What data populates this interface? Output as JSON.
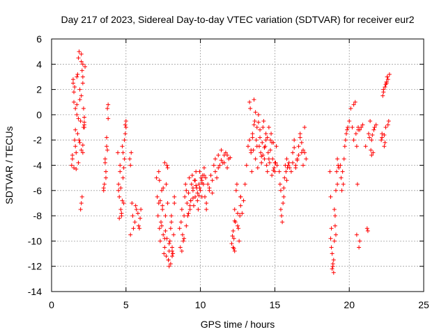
{
  "chart_data": {
    "type": "scatter",
    "title": "Day 217 of 2023, Sidereal Day-to-day VTEC variation (SDTVAR) for receiver eur2",
    "xlabel": "GPS time / hours",
    "ylabel": "SDTVAR / TECUs",
    "xlim": [
      0,
      25
    ],
    "ylim": [
      -14,
      6
    ],
    "xticks": [
      0,
      5,
      10,
      15,
      20,
      25
    ],
    "yticks": [
      -14,
      -12,
      -10,
      -8,
      -6,
      -4,
      -2,
      0,
      2,
      4,
      6
    ],
    "grid": true,
    "marker": "plus",
    "color": "#ff0000",
    "series": [
      {
        "name": "SDTVAR eur2",
        "x": [
          1.35,
          1.4,
          1.45,
          1.5,
          1.55,
          1.6,
          1.65,
          1.7,
          1.75,
          1.8,
          1.85,
          1.9,
          1.95,
          2.0,
          2.05,
          2.1,
          2.15,
          2.2,
          2.25,
          1.5,
          1.6,
          1.7,
          1.8,
          1.9,
          2.0,
          2.1,
          1.4,
          1.5,
          1.6,
          1.7,
          1.8,
          1.9,
          2.0,
          2.1,
          2.2,
          1.95,
          2.0,
          2.05,
          2.1,
          2.15,
          2.2,
          1.45,
          1.55,
          1.65,
          1.75,
          1.85,
          2.0,
          2.1,
          2.2,
          3.5,
          3.55,
          3.6,
          3.65,
          3.7,
          3.75,
          3.8,
          3.5,
          3.6,
          3.7,
          3.8,
          3.65,
          3.75,
          4.45,
          4.5,
          4.55,
          4.6,
          4.65,
          4.7,
          4.75,
          4.8,
          4.85,
          4.9,
          4.95,
          5.0,
          4.5,
          4.6,
          4.7,
          4.8,
          4.9,
          5.0,
          4.55,
          4.65,
          4.75,
          4.85,
          4.95,
          5.25,
          5.3,
          5.35,
          5.4,
          5.5,
          5.6,
          5.7,
          5.3,
          5.45,
          5.65,
          5.8,
          5.85,
          5.9,
          5.95,
          6.0,
          7.05,
          7.1,
          7.15,
          7.2,
          7.25,
          7.3,
          7.35,
          7.4,
          7.45,
          7.5,
          7.55,
          7.6,
          7.65,
          7.7,
          7.75,
          7.8,
          7.85,
          7.9,
          7.95,
          8.0,
          8.05,
          8.1,
          8.15,
          8.2,
          8.25,
          7.2,
          7.3,
          7.4,
          7.5,
          7.6,
          7.7,
          7.8,
          7.9,
          8.0,
          8.1,
          7.25,
          7.45,
          7.65,
          7.85,
          8.05,
          8.25,
          7.6,
          7.75,
          7.9,
          8.1,
          8.6,
          8.65,
          8.7,
          8.75,
          8.8,
          8.85,
          8.9,
          8.95,
          9.0,
          9.05,
          9.1,
          9.15,
          9.2,
          9.25,
          9.3,
          9.35,
          9.4,
          9.45,
          9.5,
          9.55,
          9.6,
          9.65,
          9.7,
          9.75,
          9.8,
          9.85,
          9.9,
          9.95,
          10.0,
          10.05,
          10.1,
          10.15,
          10.2,
          10.25,
          8.75,
          8.9,
          9.05,
          9.2,
          9.35,
          9.5,
          9.65,
          9.8,
          9.95,
          10.1,
          10.25,
          9.3,
          9.5,
          9.7,
          9.9,
          10.1,
          10.3,
          10.35,
          10.4,
          10.5,
          10.6,
          10.7,
          10.8,
          10.9,
          11.0,
          11.1,
          11.2,
          11.3,
          11.4,
          11.5,
          11.6,
          11.7,
          11.8,
          11.9,
          12.0,
          10.4,
          10.6,
          10.8,
          11.0,
          11.2,
          11.4,
          11.6,
          11.8,
          12.2,
          12.25,
          12.3,
          12.35,
          12.4,
          12.45,
          12.5,
          12.55,
          12.6,
          12.65,
          12.7,
          12.3,
          12.5,
          12.7,
          12.1,
          12.15,
          12.2,
          12.25,
          12.3,
          12.7,
          12.8,
          12.9,
          13.0,
          13.1,
          13.2,
          13.3,
          13.35,
          13.4,
          13.45,
          13.5,
          13.55,
          13.6,
          13.65,
          13.7,
          13.75,
          13.8,
          13.85,
          13.9,
          13.95,
          14.0,
          14.05,
          14.1,
          14.15,
          14.2,
          14.25,
          14.3,
          14.35,
          14.4,
          14.45,
          14.5,
          14.55,
          14.6,
          14.65,
          14.7,
          14.75,
          14.8,
          14.85,
          14.9,
          14.95,
          15.0,
          15.05,
          15.1,
          15.15,
          13.4,
          13.6,
          13.8,
          14.0,
          14.2,
          14.4,
          14.6,
          14.8,
          15.0,
          13.3,
          13.5,
          13.7,
          13.9,
          14.1,
          14.3,
          14.5,
          14.7,
          14.9,
          15.3,
          15.35,
          15.4,
          15.45,
          15.5,
          15.55,
          15.6,
          15.65,
          15.7,
          15.75,
          15.8,
          15.85,
          15.9,
          15.95,
          16.0,
          15.4,
          15.6,
          15.8,
          16.1,
          16.2,
          16.3,
          16.4,
          16.5,
          16.6,
          16.7,
          16.8,
          16.9,
          17.0,
          17.1,
          16.2,
          16.4,
          16.6,
          16.8,
          17.0,
          16.3,
          16.5,
          16.7,
          16.9,
          18.7,
          18.75,
          18.8,
          18.85,
          18.9,
          18.95,
          19.0,
          19.05,
          19.1,
          19.15,
          19.2,
          19.25,
          19.3,
          18.8,
          18.9,
          19.0,
          19.1,
          19.2,
          18.75,
          18.85,
          18.95,
          19.05,
          19.4,
          19.5,
          19.6,
          19.7,
          19.8,
          19.9,
          19.45,
          19.55,
          19.65,
          19.75,
          19.85,
          20.0,
          20.1,
          20.2,
          20.3,
          20.4,
          20.5,
          20.6,
          20.7,
          20.8,
          20.9,
          20.3,
          20.5,
          20.7,
          20.45,
          20.55,
          20.6,
          20.65,
          21.1,
          21.2,
          21.3,
          21.4,
          21.5,
          21.6,
          21.7,
          21.8,
          21.25,
          21.45,
          21.65,
          21.35,
          21.5,
          21.55,
          22.15,
          22.2,
          22.25,
          22.3,
          22.35,
          22.4,
          22.45,
          22.5,
          22.55,
          22.6,
          22.65,
          22.7,
          22.2,
          22.3,
          22.4,
          22.5,
          22.6,
          22.35,
          22.45,
          22.55
        ],
        "y": [
          -4.0,
          -3.5,
          2.5,
          1.0,
          -2.0,
          0.5,
          -3.0,
          3.0,
          -1.5,
          4.5,
          5.0,
          2.0,
          -0.5,
          1.5,
          3.5,
          4.0,
          -1.0,
          -0.8,
          3.8,
          -4.2,
          -2.5,
          0.0,
          -3.8,
          -2.2,
          4.8,
          2.5,
          -3.2,
          1.8,
          -1.2,
          0.8,
          -0.3,
          1.2,
          -2.8,
          -2.4,
          -0.6,
          -7.5,
          -7.0,
          -6.5,
          -3.0,
          0.5,
          -1.0,
          2.8,
          2.2,
          -4.3,
          3.2,
          -2.0,
          4.2,
          3.0,
          -0.2,
          -6.0,
          -5.5,
          -3.5,
          -4.5,
          -2.5,
          0.5,
          -0.3,
          -5.8,
          -3.8,
          -1.8,
          0.8,
          -5.0,
          -2.8,
          -3.0,
          -5.5,
          -6.5,
          -4.0,
          -7.5,
          -8.0,
          -2.5,
          -5.0,
          -7.0,
          -3.5,
          -1.5,
          -0.5,
          -6.0,
          -4.5,
          -7.8,
          -3.0,
          -2.0,
          -1.0,
          -8.2,
          -5.8,
          -6.8,
          -4.2,
          -0.8,
          -3.5,
          -4.0,
          -3.0,
          -7.0,
          -9.0,
          -8.5,
          -7.5,
          -9.5,
          -8.0,
          -7.2,
          -7.8,
          -8.8,
          -9.0,
          -8.2,
          -7.5,
          -5.0,
          -6.5,
          -8.0,
          -7.0,
          -9.0,
          -10.0,
          -8.5,
          -6.0,
          -7.5,
          -9.5,
          -11.0,
          -10.5,
          -8.0,
          -5.5,
          -4.0,
          -7.0,
          -11.5,
          -12.0,
          -10.0,
          -9.0,
          -8.0,
          -10.5,
          -11.0,
          -9.5,
          -7.0,
          -4.5,
          -6.8,
          -8.8,
          -5.8,
          -9.8,
          -11.2,
          -4.2,
          -10.2,
          -11.8,
          -10.8,
          -5.2,
          -7.2,
          -9.2,
          -11.5,
          -8.5,
          -6.5,
          -3.8,
          -9.8,
          -10.8,
          -11.2,
          -9.0,
          -10.5,
          -8.5,
          -7.5,
          -9.5,
          -10.0,
          -8.0,
          -6.5,
          -5.5,
          -6.0,
          -7.0,
          -8.0,
          -6.2,
          -5.0,
          -7.5,
          -6.8,
          -5.5,
          -4.8,
          -6.0,
          -7.2,
          -5.2,
          -6.5,
          -4.5,
          -5.8,
          -6.8,
          -7.5,
          -5.5,
          -4.5,
          -6.0,
          -5.0,
          -6.5,
          -4.8,
          -5.5,
          -4.2,
          -10.8,
          -9.8,
          -8.8,
          -7.8,
          -6.8,
          -5.8,
          -5.2,
          -6.2,
          -5.8,
          -5.2,
          -4.8,
          -7.2,
          -6.6,
          -5.6,
          -6.4,
          -5.4,
          -6.5,
          -5.0,
          -7.5,
          -5.5,
          -6.0,
          -4.8,
          -5.2,
          -4.0,
          -3.5,
          -5.0,
          -3.2,
          -4.0,
          -2.8,
          -3.8,
          -3.2,
          -3.0,
          -4.2,
          -3.5,
          -3.4,
          -7.0,
          -5.8,
          -6.2,
          -4.5,
          -4.2,
          -3.6,
          -3.8,
          -3.2,
          -10.5,
          -9.8,
          -7.5,
          -8.5,
          -6.0,
          -5.5,
          -7.8,
          -9.0,
          -10.0,
          -8.0,
          -6.5,
          -10.8,
          -8.8,
          -7.2,
          -10.2,
          -9.6,
          -9.2,
          -10.6,
          -8.4,
          -6.5,
          -7.8,
          -6.8,
          -5.5,
          -4.0,
          -2.5,
          -2.0,
          0.5,
          -3.0,
          -4.5,
          -1.5,
          -2.8,
          1.2,
          -0.5,
          -3.5,
          -2.0,
          -1.0,
          -4.2,
          0.0,
          -2.5,
          -1.8,
          -3.0,
          -3.8,
          -2.2,
          -1.0,
          -0.5,
          -3.5,
          -2.5,
          -1.5,
          -4.0,
          -4.5,
          -3.0,
          -1.0,
          -3.8,
          -2.0,
          -1.5,
          -4.8,
          -3.5,
          -2.2,
          -4.2,
          -4.5,
          -3.8,
          -2.5,
          -4.0,
          -2.8,
          -0.8,
          -2.5,
          -1.2,
          -3.2,
          -2.0,
          -3.5,
          -2.2,
          -3.8,
          1.0,
          -1.8,
          0.2,
          -0.6,
          -3.3,
          -2.6,
          -1.8,
          -2.8,
          -4.4,
          -4.5,
          -5.5,
          -6.0,
          -8.0,
          -8.5,
          -7.0,
          -6.5,
          -5.0,
          -4.0,
          -4.5,
          -3.5,
          -4.2,
          -4.0,
          -3.8,
          -4.2,
          -7.5,
          -5.8,
          -5.2,
          -4.5,
          -3.0,
          -2.0,
          -4.0,
          -3.5,
          -2.5,
          -1.5,
          -3.0,
          -2.8,
          -1.0,
          -3.5,
          -3.8,
          -4.2,
          -3.2,
          -2.2,
          -3.0,
          -2.6,
          -3.6,
          -1.8,
          -4.0,
          -4.5,
          -6.5,
          -9.0,
          -11.0,
          -12.0,
          -12.5,
          -10.0,
          -8.0,
          -6.0,
          -4.5,
          -3.5,
          -4.0,
          -4.2,
          -10.5,
          -11.8,
          -7.5,
          -9.5,
          -5.5,
          -9.8,
          -12.2,
          -11.5,
          -8.8,
          -4.0,
          -6.0,
          -5.5,
          -2.5,
          -1.5,
          -1.0,
          -5.0,
          -4.5,
          -3.5,
          -2.0,
          -1.2,
          -0.5,
          0.5,
          -1.0,
          0.8,
          1.0,
          -2.5,
          -1.0,
          -1.2,
          -1.0,
          -0.8,
          -2.0,
          -9.5,
          -10.0,
          -1.5,
          -5.5,
          -1.2,
          -10.5,
          -2.5,
          -9.0,
          -1.5,
          -0.5,
          -2.0,
          -3.0,
          -1.0,
          -0.8,
          -9.2,
          -2.8,
          -1.2,
          -1.8,
          -3.2,
          -1.6,
          -2.0,
          -1.5,
          1.5,
          2.0,
          -2.5,
          2.2,
          -1.0,
          2.5,
          3.0,
          2.8,
          -0.5,
          3.2,
          -1.8,
          1.8,
          -2.2,
          2.6,
          -0.8,
          -1.6,
          2.4,
          3.0
        ]
      }
    ]
  }
}
